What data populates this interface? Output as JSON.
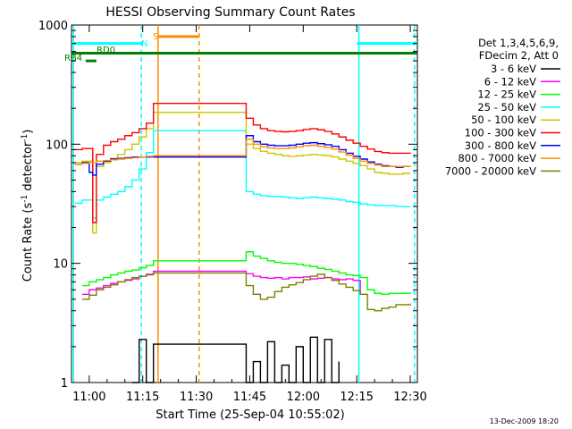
{
  "chart_data": {
    "type": "line",
    "title": "HESSI Observing Summary Count Rates",
    "xlabel": "Start Time (25-Sep-04 10:55:02)",
    "ylabel_main": "Count Rate (s",
    "ylabel_sup1": "-1",
    "ylabel_mid": " detector",
    "ylabel_sup2": "-1",
    "ylabel_end": ")",
    "footer": "13-Dec-2009 18:20",
    "x_start_minutes": 55.03,
    "xlim": [
      55.03,
      152
    ],
    "yscale": "log",
    "ylim": [
      1,
      1000
    ],
    "x_ticks": [
      {
        "m": 60,
        "label": "11:00"
      },
      {
        "m": 75,
        "label": "11:15"
      },
      {
        "m": 90,
        "label": "11:30"
      },
      {
        "m": 105,
        "label": "11:45"
      },
      {
        "m": 120,
        "label": "12:00"
      },
      {
        "m": 135,
        "label": "12:15"
      },
      {
        "m": 150,
        "label": "12:30"
      }
    ],
    "y_ticks": [
      {
        "v": 1,
        "label": "1"
      },
      {
        "v": 10,
        "label": "10"
      },
      {
        "v": 100,
        "label": "100"
      },
      {
        "v": 1000,
        "label": "1000"
      }
    ],
    "legend_title": [
      "Det 1,3,4,5,6,9,",
      "FDecim 2, Att 0"
    ],
    "legend_position": "right",
    "series": [
      {
        "name": "3 - 6 keV",
        "color": "#000000",
        "x": [
          72,
          74,
          76,
          78,
          104,
          106,
          108,
          110,
          112,
          114,
          116,
          118,
          120,
          122,
          124,
          126,
          128,
          130
        ],
        "y": [
          1,
          2.3,
          1,
          2.1,
          1,
          1.5,
          1,
          2.2,
          1,
          1.4,
          1,
          2.0,
          1,
          2.4,
          1,
          2.3,
          1,
          1.5
        ]
      },
      {
        "name": "6 - 12 keV",
        "color": "#ff00ff",
        "x": [
          58,
          60,
          62,
          64,
          66,
          68,
          70,
          72,
          74,
          76,
          78,
          104,
          106,
          108,
          110,
          112,
          114,
          116,
          118,
          120,
          122,
          124,
          126,
          128,
          130,
          132,
          134,
          136
        ],
        "y": [
          5.5,
          6,
          6.2,
          6.5,
          6.8,
          7,
          7.2,
          7.4,
          7.8,
          8.1,
          8.6,
          8.2,
          7.8,
          7.6,
          7.5,
          7.6,
          7.4,
          7.6,
          7.6,
          7.7,
          7.4,
          7.5,
          7.6,
          7.4,
          7.3,
          7.4,
          7.2,
          5.5
        ]
      },
      {
        "name": "12 - 25 keV",
        "color": "#00ff00",
        "x": [
          58,
          60,
          62,
          64,
          66,
          68,
          70,
          72,
          74,
          76,
          78,
          104,
          106,
          108,
          110,
          112,
          114,
          116,
          118,
          120,
          122,
          124,
          126,
          128,
          130,
          132,
          134,
          136,
          138,
          140,
          142,
          144,
          146,
          148,
          150
        ],
        "y": [
          6.5,
          7.0,
          7.3,
          7.6,
          8.0,
          8.3,
          8.6,
          8.8,
          9.2,
          9.6,
          10.5,
          12.5,
          11.5,
          11.0,
          10.5,
          10.2,
          10.0,
          10.0,
          9.8,
          9.6,
          9.4,
          9.1,
          8.9,
          8.6,
          8.3,
          8.0,
          7.9,
          7.6,
          6.0,
          5.6,
          5.5,
          5.6,
          5.6,
          5.6,
          5.7
        ]
      },
      {
        "name": "25 - 50 keV",
        "color": "#00ffff",
        "x": [
          56,
          58,
          60,
          61,
          62,
          64,
          66,
          68,
          70,
          72,
          74,
          76,
          78,
          104,
          106,
          108,
          110,
          112,
          114,
          116,
          118,
          120,
          122,
          124,
          126,
          128,
          130,
          132,
          134,
          136,
          138,
          140,
          142,
          144,
          146,
          148,
          150
        ],
        "y": [
          32,
          34,
          34,
          24,
          34,
          36,
          38,
          40,
          44,
          50,
          62,
          85,
          130,
          40,
          38,
          37,
          36.5,
          36.5,
          36,
          35.5,
          35,
          35.5,
          36,
          35.5,
          35,
          34.5,
          34,
          33,
          32.5,
          31.5,
          31,
          30.5,
          30.5,
          30.5,
          30,
          30,
          30
        ]
      },
      {
        "name": "50 - 100 keV",
        "color": "#c8c800",
        "x": [
          56,
          58,
          60,
          61,
          62,
          64,
          66,
          68,
          70,
          72,
          74,
          76,
          78,
          104,
          106,
          108,
          110,
          112,
          114,
          116,
          118,
          120,
          122,
          124,
          126,
          128,
          130,
          132,
          134,
          136,
          138,
          140,
          142,
          144,
          146,
          148,
          150
        ],
        "y": [
          70,
          72,
          72,
          18,
          65,
          70,
          76,
          82,
          90,
          100,
          115,
          135,
          185,
          100,
          92,
          87,
          84,
          82,
          80,
          79,
          80,
          81,
          82,
          81,
          80,
          78,
          75,
          72,
          69,
          66,
          62,
          58,
          57,
          56,
          56,
          57,
          57
        ]
      },
      {
        "name": "100 - 300 keV",
        "color": "#ff0000",
        "x": [
          56,
          58,
          60,
          61,
          62,
          64,
          66,
          68,
          70,
          72,
          74,
          76,
          78,
          104,
          106,
          108,
          110,
          112,
          114,
          116,
          118,
          120,
          122,
          124,
          126,
          128,
          130,
          132,
          134,
          136,
          138,
          140,
          142,
          144,
          146,
          148,
          150
        ],
        "y": [
          90,
          92,
          92,
          22,
          82,
          98,
          105,
          110,
          118,
          125,
          135,
          150,
          220,
          165,
          145,
          135,
          130,
          128,
          127,
          128,
          130,
          133,
          135,
          132,
          128,
          122,
          115,
          108,
          102,
          96,
          91,
          87,
          85,
          84,
          84,
          84,
          85
        ]
      },
      {
        "name": "300 - 800 keV",
        "color": "#0000ff",
        "x": [
          56,
          58,
          60,
          61,
          62,
          64,
          66,
          68,
          70,
          72,
          74,
          76,
          78,
          104,
          106,
          108,
          110,
          112,
          114,
          116,
          118,
          120,
          122,
          124,
          126,
          128,
          130,
          132,
          134,
          136,
          138,
          140,
          142,
          144,
          146,
          148,
          150
        ],
        "y": [
          68,
          70,
          58,
          55,
          68,
          72,
          75,
          76,
          77,
          78,
          78,
          78,
          78,
          118,
          105,
          100,
          98,
          97,
          97,
          98,
          100,
          102,
          103,
          101,
          99,
          96,
          90,
          84,
          79,
          75,
          71,
          68,
          66,
          65,
          64,
          65,
          65
        ]
      },
      {
        "name": "800 - 7000 keV",
        "color": "#ff8c00",
        "x": [
          56,
          58,
          60,
          62,
          64,
          66,
          68,
          70,
          72,
          74,
          76,
          78,
          104,
          106,
          108,
          110,
          112,
          114,
          116,
          118,
          120,
          122,
          124,
          126,
          128,
          130,
          132,
          134,
          136,
          138,
          140,
          142,
          144,
          146,
          148,
          150
        ],
        "y": [
          68,
          69,
          70,
          72,
          73,
          74,
          75,
          76,
          77,
          78,
          79,
          80,
          110,
          100,
          95,
          93,
          92,
          92,
          93,
          95,
          97,
          98,
          96,
          94,
          91,
          86,
          81,
          76,
          72,
          69,
          67,
          65,
          65,
          65,
          65,
          66
        ]
      },
      {
        "name": "7000 - 20000 keV",
        "color": "#7f7f00",
        "x": [
          58,
          60,
          62,
          64,
          66,
          68,
          70,
          72,
          74,
          76,
          78,
          104,
          106,
          108,
          110,
          112,
          114,
          116,
          118,
          120,
          122,
          124,
          126,
          128,
          130,
          132,
          134,
          136,
          138,
          140,
          142,
          144,
          146,
          148,
          150
        ],
        "y": [
          5.0,
          5.4,
          6.0,
          6.3,
          6.6,
          7.0,
          7.3,
          7.6,
          7.8,
          8.0,
          8.3,
          6.5,
          5.5,
          5.0,
          5.2,
          5.8,
          6.3,
          6.6,
          6.9,
          7.3,
          7.8,
          8.1,
          7.6,
          7.2,
          6.7,
          6.3,
          5.9,
          5.5,
          4.1,
          4.0,
          4.2,
          4.3,
          4.5,
          4.5,
          4.6
        ]
      }
    ],
    "state_flags": [
      {
        "label": "N",
        "color": "#00ffff",
        "y": 700,
        "segments": [
          [
            55.03,
            75
          ],
          [
            135,
            152
          ]
        ]
      },
      {
        "label": "S",
        "color": "#ff8c00",
        "y": 800,
        "segments": [
          [
            79.5,
            90.8
          ]
        ]
      },
      {
        "label": "RD0",
        "color": "#007f00",
        "y": 580,
        "segments": [
          [
            55.03,
            152
          ]
        ]
      },
      {
        "label": "RB4",
        "color": "#007f00",
        "y": 500,
        "segments": [
          [
            59,
            62
          ]
        ]
      }
    ],
    "vertical_markers": [
      {
        "m": 55.6,
        "color": "#00ffff",
        "style": "solid"
      },
      {
        "m": 74.6,
        "color": "#00ffff",
        "style": "dashed"
      },
      {
        "m": 79.3,
        "color": "#ff8c00",
        "style": "solid"
      },
      {
        "m": 90.8,
        "color": "#ff8c00",
        "style": "dashed"
      },
      {
        "m": 135.6,
        "color": "#00ffff",
        "style": "solid"
      },
      {
        "m": 151.2,
        "color": "#00ffff",
        "style": "dashed"
      }
    ]
  }
}
